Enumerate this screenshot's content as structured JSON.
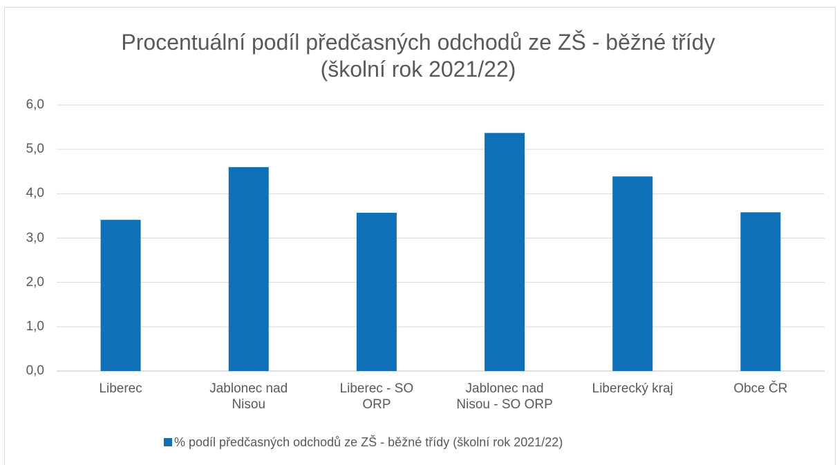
{
  "chart_data": {
    "type": "bar",
    "title": "Procentuální podíl předčasných odchodů ze ZŠ - běžné třídy (školní rok 2021/22)",
    "categories": [
      "Liberec",
      "Jablonec nad Nisou",
      "Liberec - SO ORP",
      "Jablonec nad Nisou - SO ORP",
      "Liberecký kraj",
      "Obce ČR"
    ],
    "series": [
      {
        "name": "% podíl předčasných odchodů ze ZŠ - běžné třídy (školní rok 2021/22)",
        "color": "#0f70b7",
        "values": [
          3.41,
          4.6,
          3.57,
          5.37,
          4.39,
          3.58
        ]
      }
    ],
    "ylim": [
      0,
      6
    ],
    "yticks": [
      {
        "value": 0,
        "label": "0,0"
      },
      {
        "value": 1,
        "label": "1,0"
      },
      {
        "value": 2,
        "label": "2,0"
      },
      {
        "value": 3,
        "label": "3,0"
      },
      {
        "value": 4,
        "label": "4,0"
      },
      {
        "value": 5,
        "label": "5,0"
      },
      {
        "value": 6,
        "label": "6,0"
      }
    ],
    "grid": true,
    "legend": "bottom"
  }
}
